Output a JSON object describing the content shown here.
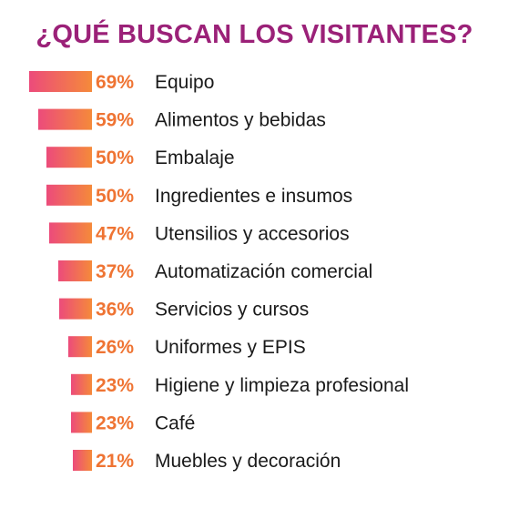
{
  "chart_data": {
    "type": "bar",
    "orientation": "horizontal",
    "title": "¿QUÉ BUSCAN LOS VISITANTES?",
    "categories": [
      "Equipo",
      "Alimentos y bebidas",
      "Embalaje",
      "Ingredientes e insumos",
      "Utensilios y accesorios",
      "Automatización comercial",
      "Servicios y cursos",
      "Uniformes y EPIS",
      "Higiene y limpieza profesional",
      "Café",
      "Muebles y decoración"
    ],
    "values": [
      69,
      59,
      50,
      50,
      47,
      37,
      36,
      26,
      23,
      23,
      21
    ],
    "value_labels": [
      "69%",
      "59%",
      "50%",
      "50%",
      "47%",
      "37%",
      "36%",
      "26%",
      "23%",
      "23%",
      "21%"
    ],
    "unit": "%",
    "colors": {
      "title": "#9b2178",
      "bar_start": "#ec4b7b",
      "bar_end": "#f58a3a",
      "value_label": "#ef7433",
      "category_label": "#1a1a1a"
    }
  }
}
